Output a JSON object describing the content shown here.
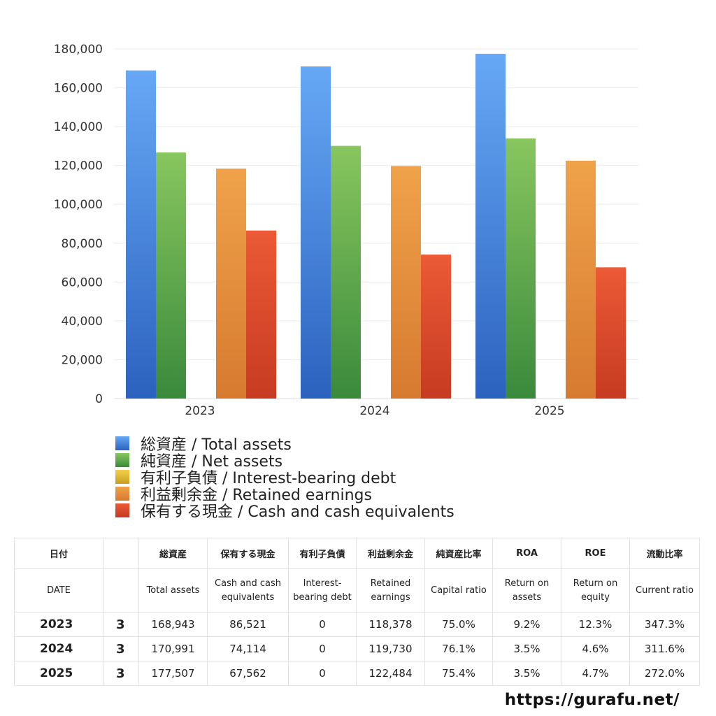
{
  "chart_data": {
    "type": "bar",
    "categories": [
      "2023",
      "2024",
      "2025"
    ],
    "series": [
      {
        "name": "総資産 / Total assets",
        "values": [
          168943,
          170991,
          177507
        ],
        "color_top": "#66a8f5",
        "color_bottom": "#2c62bf"
      },
      {
        "name": "純資産 / Net assets",
        "values": [
          126700,
          130100,
          133900
        ],
        "color_top": "#88c65e",
        "color_bottom": "#3a8a3c"
      },
      {
        "name": "有利子負債 / Interest-bearing debt",
        "values": [
          0,
          0,
          0
        ],
        "color_top": "#f2d04a",
        "color_bottom": "#c9a020"
      },
      {
        "name": "利益剰余金 / Retained earnings",
        "values": [
          118378,
          119730,
          122484
        ],
        "color_top": "#f0a24a",
        "color_bottom": "#d67a30"
      },
      {
        "name": "保有する現金 /  Cash and cash equivalents",
        "values": [
          86521,
          74114,
          67562
        ],
        "color_top": "#ec5a36",
        "color_bottom": "#c63b22"
      }
    ],
    "yticks": [
      "0",
      "20,000",
      "40,000",
      "60,000",
      "80,000",
      "100,000",
      "120,000",
      "140,000",
      "160,000",
      "180,000"
    ],
    "ylim": [
      0,
      180000
    ],
    "grid": true,
    "legend_position": "bottom",
    "title": "",
    "xlabel": "",
    "ylabel": ""
  },
  "table": {
    "header_jp": [
      "日付",
      "",
      "総資産",
      "保有する現金",
      "有利子負債",
      "利益剰余金",
      "純資産比率",
      "ROA",
      "ROE",
      "流動比率"
    ],
    "header_en": [
      "DATE",
      "",
      "Total assets",
      "Cash and cash equivalents",
      "Interest-bearing debt",
      "Retained earnings",
      "Capital ratio",
      "Return on assets",
      "Return on equity",
      "Current ratio"
    ],
    "rows": [
      [
        "2023",
        "3",
        "168,943",
        "86,521",
        "0",
        "118,378",
        "75.0%",
        "9.2%",
        "12.3%",
        "347.3%"
      ],
      [
        "2024",
        "3",
        "170,991",
        "74,114",
        "0",
        "119,730",
        "76.1%",
        "3.5%",
        "4.6%",
        "311.6%"
      ],
      [
        "2025",
        "3",
        "177,507",
        "67,562",
        "0",
        "122,484",
        "75.4%",
        "3.5%",
        "4.7%",
        "272.0%"
      ]
    ]
  },
  "site": "https://gurafu.net/"
}
